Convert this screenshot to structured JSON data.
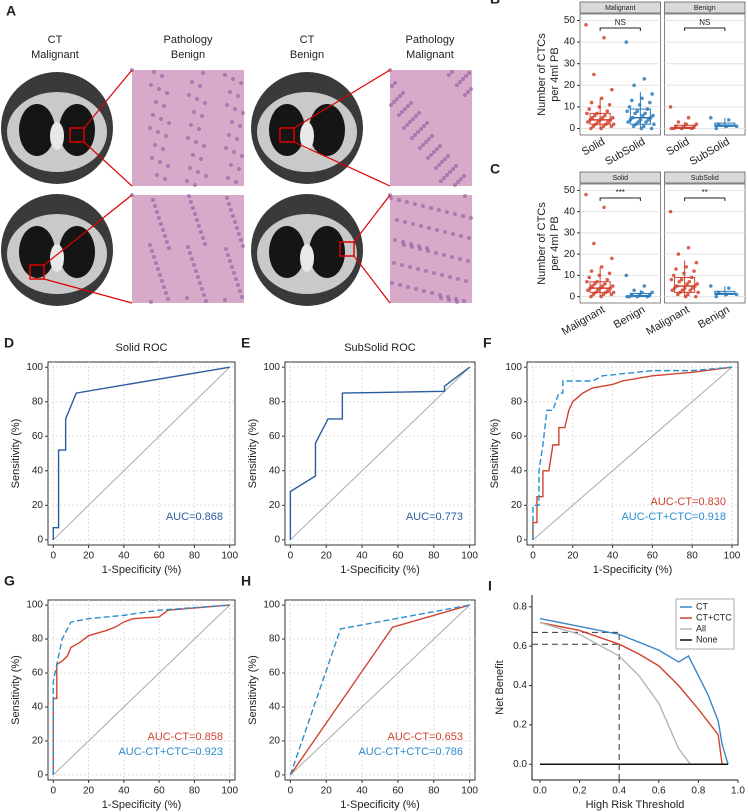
{
  "panel_a": {
    "panel": "A",
    "columns": [
      [
        "CT",
        "Malignant"
      ],
      [
        "Pathology",
        "Benign"
      ],
      [
        "CT",
        "Benign"
      ],
      [
        "Pathology",
        "Malignant"
      ]
    ]
  },
  "chart_data": [
    {
      "type": "box",
      "panel": "B",
      "ylabel": [
        "Number of CTCs",
        "per 4ml PB"
      ],
      "ylim": [
        -3,
        53
      ],
      "yticks": [
        0,
        10,
        20,
        30,
        40,
        50
      ],
      "grid": true,
      "facets": [
        {
          "title": "Malignant",
          "annotation": "NS",
          "categories": [
            "Solid",
            "SubSolid"
          ],
          "groups": [
            {
              "color": "#d1432f",
              "box": [
                0,
                2,
                4,
                7,
                14
              ],
              "points": [
                48,
                42,
                25,
                18,
                14,
                12,
                11,
                10,
                9,
                8,
                7,
                7,
                6,
                6,
                5,
                5,
                5,
                4,
                4,
                4,
                3,
                3,
                3,
                2,
                2,
                2,
                1,
                1,
                1,
                0,
                0
              ]
            },
            {
              "color": "#2b7bba",
              "box": [
                0,
                2,
                5,
                9,
                17
              ],
              "points": [
                40,
                23,
                20,
                16,
                14,
                13,
                12,
                11,
                10,
                9,
                8,
                8,
                7,
                7,
                6,
                6,
                5,
                5,
                4,
                4,
                4,
                3,
                3,
                3,
                2,
                2,
                1,
                1,
                0,
                0
              ]
            }
          ]
        },
        {
          "title": "Benign",
          "annotation": "NS",
          "categories": [
            "Solid",
            "SubSolid"
          ],
          "groups": [
            {
              "color": "#d1432f",
              "box": [
                0,
                0,
                0.5,
                1.5,
                3
              ],
              "points": [
                10,
                5,
                3,
                2,
                2,
                1,
                1,
                1,
                0,
                0,
                0,
                0
              ]
            },
            {
              "color": "#2b7bba",
              "box": [
                0,
                1,
                1.5,
                2.5,
                5
              ],
              "points": [
                5,
                4,
                2,
                1,
                1,
                0
              ]
            }
          ]
        }
      ]
    },
    {
      "type": "box",
      "panel": "C",
      "ylabel": [
        "Number of CTCs",
        "per 4ml PB"
      ],
      "ylim": [
        -3,
        53
      ],
      "yticks": [
        0,
        10,
        20,
        30,
        40,
        50
      ],
      "grid": true,
      "facets": [
        {
          "title": "Solid",
          "annotation": "***",
          "categories": [
            "Malignant",
            "Benign"
          ],
          "groups": [
            {
              "color": "#d1432f",
              "box": [
                0,
                2,
                4,
                7,
                14
              ],
              "points": [
                48,
                42,
                25,
                18,
                14,
                12,
                11,
                10,
                9,
                8,
                7,
                7,
                6,
                6,
                5,
                5,
                5,
                4,
                4,
                4,
                3,
                3,
                3,
                2,
                2,
                2,
                1,
                1,
                1,
                0,
                0
              ]
            },
            {
              "color": "#2b7bba",
              "box": [
                0,
                0,
                0.5,
                1.5,
                3
              ],
              "points": [
                10,
                5,
                3,
                2,
                2,
                1,
                1,
                1,
                0,
                0,
                0,
                0
              ]
            }
          ]
        },
        {
          "title": "SubSolid",
          "annotation": "**",
          "categories": [
            "Malignant",
            "Benign"
          ],
          "groups": [
            {
              "color": "#d1432f",
              "box": [
                0,
                2,
                5,
                9,
                17
              ],
              "points": [
                40,
                23,
                20,
                16,
                14,
                13,
                12,
                11,
                10,
                9,
                8,
                8,
                7,
                7,
                6,
                6,
                5,
                5,
                4,
                4,
                4,
                3,
                3,
                3,
                2,
                2,
                1,
                1,
                0,
                0
              ]
            },
            {
              "color": "#2b7bba",
              "box": [
                0,
                1,
                1.5,
                2.5,
                5
              ],
              "points": [
                5,
                4,
                2,
                1,
                1,
                0
              ]
            }
          ]
        }
      ]
    },
    {
      "type": "roc",
      "panel": "D",
      "title": "Solid ROC",
      "xlabel": "1-Specificity (%)",
      "ylabel": "Sensitivity (%)",
      "xlim": [
        -3,
        103
      ],
      "ylim": [
        -3,
        103
      ],
      "xticks": [
        0,
        20,
        40,
        60,
        80,
        100
      ],
      "yticks": [
        0,
        20,
        40,
        60,
        80,
        100
      ],
      "grid": true,
      "series": [
        {
          "color": "#2a5d9f",
          "dashed": false,
          "label": "AUC=0.868",
          "x": [
            0,
            0,
            3,
            3,
            7,
            7,
            13,
            100
          ],
          "y": [
            0,
            7,
            7,
            52,
            52,
            70,
            85,
            100
          ]
        }
      ]
    },
    {
      "type": "roc",
      "panel": "E",
      "title": "SubSolid ROC",
      "xlabel": "1-Specificity (%)",
      "ylabel": "Sensitivity (%)",
      "xlim": [
        -3,
        103
      ],
      "ylim": [
        -3,
        103
      ],
      "xticks": [
        0,
        20,
        40,
        60,
        80,
        100
      ],
      "yticks": [
        0,
        20,
        40,
        60,
        80,
        100
      ],
      "grid": true,
      "series": [
        {
          "color": "#2a5d9f",
          "dashed": false,
          "label": "AUC=0.773",
          "x": [
            0,
            0,
            14,
            14,
            21,
            29,
            29,
            86,
            86,
            100
          ],
          "y": [
            0,
            28,
            37,
            56,
            70,
            70,
            85,
            86,
            89,
            100
          ]
        }
      ]
    },
    {
      "type": "roc",
      "panel": "F",
      "xlabel": "1-Specificity (%)",
      "ylabel": "Sensitivity (%)",
      "xlim": [
        -3,
        103
      ],
      "ylim": [
        -3,
        103
      ],
      "xticks": [
        0,
        20,
        40,
        60,
        80,
        100
      ],
      "yticks": [
        0,
        20,
        40,
        60,
        80,
        100
      ],
      "grid": true,
      "series": [
        {
          "color": "#d1432f",
          "dashed": false,
          "label": "AUC-CT=0.830",
          "x": [
            0,
            0,
            2,
            2,
            5,
            5,
            8,
            10,
            13,
            13,
            16,
            18,
            20,
            25,
            30,
            40,
            45,
            60,
            80,
            100
          ],
          "y": [
            0,
            10,
            10,
            25,
            25,
            40,
            40,
            55,
            55,
            65,
            65,
            75,
            80,
            85,
            88,
            90,
            92,
            95,
            97,
            100
          ]
        },
        {
          "color": "#2b8fd0",
          "dashed": true,
          "label": "AUC-CT+CTC=0.918",
          "x": [
            0,
            0,
            3,
            3,
            5,
            7,
            10,
            13,
            15,
            15,
            30,
            35,
            60,
            80,
            100
          ],
          "y": [
            0,
            20,
            20,
            40,
            55,
            75,
            75,
            85,
            85,
            92,
            92,
            95,
            98,
            98,
            100
          ]
        }
      ]
    },
    {
      "type": "roc",
      "panel": "G",
      "xlabel": "1-Specificity (%)",
      "ylabel": "Sensitivity (%)",
      "xlim": [
        -3,
        103
      ],
      "ylim": [
        -3,
        103
      ],
      "xticks": [
        0,
        20,
        40,
        60,
        80,
        100
      ],
      "yticks": [
        0,
        20,
        40,
        60,
        80,
        100
      ],
      "grid": true,
      "series": [
        {
          "color": "#d1432f",
          "dashed": false,
          "label": "AUC-CT=0.858",
          "x": [
            0,
            0,
            2,
            2,
            5,
            8,
            10,
            15,
            20,
            30,
            35,
            40,
            45,
            60,
            65,
            100
          ],
          "y": [
            0,
            45,
            45,
            65,
            67,
            70,
            75,
            78,
            82,
            85,
            87,
            90,
            92,
            93,
            97,
            100
          ]
        },
        {
          "color": "#2b8fd0",
          "dashed": true,
          "label": "AUC-CT+CTC=0.923",
          "x": [
            0,
            0,
            2,
            5,
            10,
            20,
            40,
            60,
            100
          ],
          "y": [
            0,
            55,
            65,
            80,
            90,
            92,
            94,
            97,
            100
          ]
        }
      ]
    },
    {
      "type": "roc",
      "panel": "H",
      "xlabel": "1-Specificity (%)",
      "ylabel": "Sensitivity (%)",
      "xlim": [
        -3,
        103
      ],
      "ylim": [
        -3,
        103
      ],
      "xticks": [
        0,
        20,
        40,
        60,
        80,
        100
      ],
      "yticks": [
        0,
        20,
        40,
        60,
        80,
        100
      ],
      "grid": true,
      "series": [
        {
          "color": "#d1432f",
          "dashed": false,
          "label": "AUC-CT=0.653",
          "x": [
            0,
            57,
            100
          ],
          "y": [
            0,
            87,
            100
          ]
        },
        {
          "color": "#2b8fd0",
          "dashed": true,
          "label": "AUC-CT+CTC=0.786",
          "x": [
            0,
            28,
            100
          ],
          "y": [
            0,
            86,
            100
          ]
        }
      ]
    },
    {
      "type": "decision",
      "panel": "I",
      "xlabel": "High Risk Threshold",
      "ylabel": "Net Benefit",
      "xlim": [
        -0.04,
        1.0
      ],
      "ylim": [
        -0.08,
        0.86
      ],
      "grid": false,
      "xticks": [
        {
          "value": 0,
          "label": "0.0"
        },
        0.2,
        0.4,
        0.6,
        0.8,
        {
          "value": 1,
          "label": "1.0"
        }
      ],
      "yticks": [
        {
          "value": 0,
          "label": "0.0"
        },
        0.2,
        0.4,
        0.6,
        0.8
      ],
      "reference_x": 0.4,
      "reference_y": [
        0.67,
        0.61
      ],
      "series": [
        {
          "name": "CT",
          "color": "#3a86c8",
          "x": [
            0,
            0.2,
            0.4,
            0.6,
            0.7,
            0.75,
            0.8,
            0.85,
            0.9,
            0.92,
            0.95
          ],
          "y": [
            0.74,
            0.7,
            0.66,
            0.58,
            0.52,
            0.55,
            0.45,
            0.35,
            0.22,
            0.1,
            0
          ]
        },
        {
          "name": "CT+CTC",
          "color": "#d1432f",
          "x": [
            0,
            0.2,
            0.4,
            0.5,
            0.6,
            0.7,
            0.8,
            0.9,
            0.92
          ],
          "y": [
            0.72,
            0.68,
            0.61,
            0.56,
            0.5,
            0.4,
            0.28,
            0.15,
            0
          ]
        },
        {
          "name": "All",
          "color": "#b5b5b5",
          "x": [
            0,
            0.2,
            0.4,
            0.5,
            0.6,
            0.7,
            0.76
          ],
          "y": [
            0.72,
            0.66,
            0.55,
            0.45,
            0.31,
            0.08,
            0
          ]
        },
        {
          "name": "None",
          "color": "#111111",
          "x": [
            0,
            0.95
          ],
          "y": [
            0,
            0
          ]
        }
      ]
    }
  ]
}
